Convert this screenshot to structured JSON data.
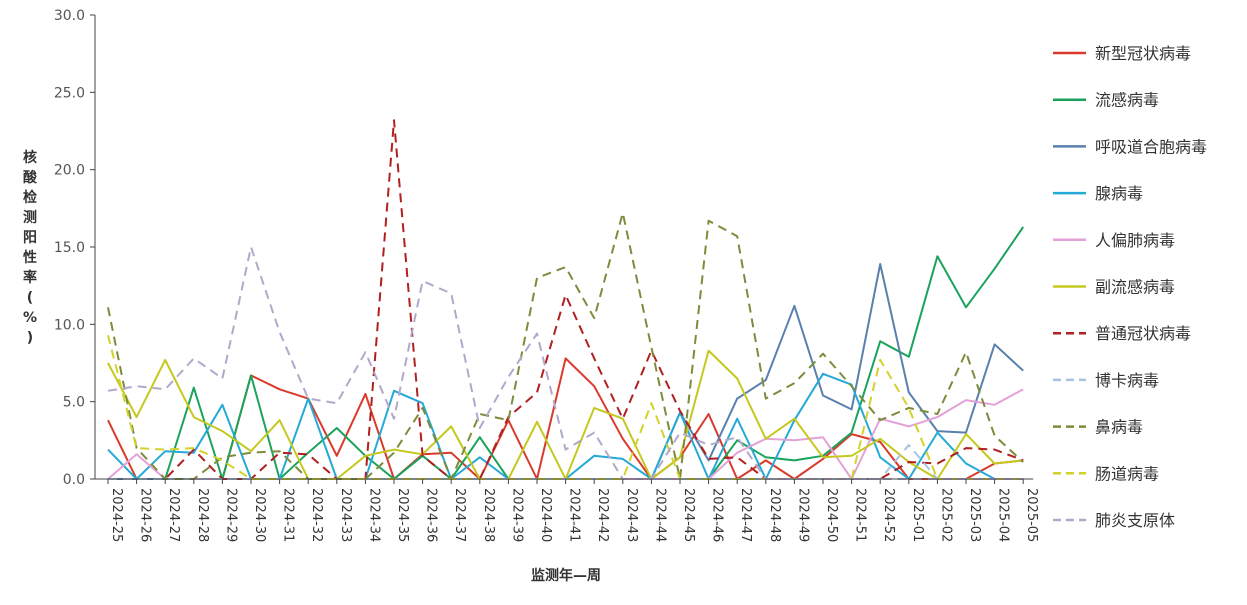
{
  "chart_data": {
    "type": "line",
    "title": "",
    "xlabel": "监测年—周",
    "ylabel": "核酸检测阳性率(%)",
    "ylim": [
      0,
      30
    ],
    "yticks": [
      "0.0",
      "5.0",
      "10.0",
      "15.0",
      "20.0",
      "25.0",
      "30.0"
    ],
    "grid": false,
    "legend_position": "right",
    "categories": [
      "2024-25",
      "2024-26",
      "2024-27",
      "2024-28",
      "2024-29",
      "2024-30",
      "2024-31",
      "2024-32",
      "2024-33",
      "2024-34",
      "2024-35",
      "2024-36",
      "2024-37",
      "2024-38",
      "2024-39",
      "2024-40",
      "2024-41",
      "2024-42",
      "2024-43",
      "2024-44",
      "2024-45",
      "2024-46",
      "2024-47",
      "2024-48",
      "2024-49",
      "2024-50",
      "2024-51",
      "2024-52",
      "2025-01",
      "2025-02",
      "2025-03",
      "2025-04",
      "2025-05"
    ],
    "series": [
      {
        "name": "新型冠状病毒",
        "color": "#d93a2b",
        "dash": "solid",
        "values": [
          3.8,
          0,
          0,
          0,
          0,
          6.7,
          5.8,
          5.2,
          1.5,
          5.5,
          0,
          1.6,
          1.7,
          0,
          3.8,
          0,
          7.8,
          6.0,
          2.6,
          0,
          1.4,
          4.2,
          0,
          1.2,
          0,
          1.3,
          2.9,
          2.4,
          0,
          0,
          0,
          1.0,
          1.2
        ]
      },
      {
        "name": "流感病毒",
        "color": "#1aa35a",
        "dash": "solid",
        "values": [
          0,
          0,
          0,
          5.9,
          0,
          6.7,
          0,
          1.7,
          3.3,
          1.5,
          0,
          1.5,
          0,
          2.7,
          0,
          0,
          0,
          0,
          0,
          0,
          0,
          0,
          2.5,
          1.4,
          1.2,
          1.5,
          3.0,
          8.9,
          7.9,
          14.4,
          11.1,
          13.6,
          16.3
        ]
      },
      {
        "name": "呼吸道合胞病毒",
        "color": "#5a80ad",
        "dash": "solid",
        "values": [
          0,
          0,
          0,
          0,
          0,
          0,
          0,
          0,
          0,
          0,
          0,
          0,
          0,
          0,
          0,
          0,
          0,
          0,
          0,
          0,
          4.3,
          1.2,
          5.2,
          6.4,
          11.2,
          5.4,
          4.5,
          13.9,
          5.6,
          3.1,
          3.0,
          8.7,
          7.0
        ]
      },
      {
        "name": "腺病毒",
        "color": "#25a9d6",
        "dash": "solid",
        "values": [
          1.9,
          0,
          1.8,
          1.7,
          4.8,
          0,
          0,
          5.2,
          0,
          0,
          5.7,
          4.9,
          0,
          1.4,
          0,
          0,
          0,
          1.5,
          1.3,
          0,
          4.3,
          0,
          3.9,
          0,
          3.8,
          6.8,
          6.1,
          1.4,
          0,
          3.0,
          1.0,
          0,
          0
        ]
      },
      {
        "name": "人偏肺病毒",
        "color": "#e2a2d8",
        "dash": "solid",
        "values": [
          0,
          1.6,
          0,
          0,
          0,
          0,
          0,
          0,
          0,
          0,
          0,
          0,
          0,
          0,
          0,
          0,
          0,
          0,
          0,
          0,
          0,
          0,
          1.7,
          2.6,
          2.5,
          2.7,
          0,
          3.9,
          3.4,
          4.0,
          5.1,
          4.8,
          5.8
        ]
      },
      {
        "name": "副流感病毒",
        "color": "#c5c81e",
        "dash": "solid",
        "values": [
          7.5,
          4.0,
          7.7,
          4.0,
          3.1,
          1.8,
          3.8,
          0,
          0,
          1.5,
          1.9,
          1.6,
          3.4,
          0,
          0,
          3.7,
          0,
          4.6,
          3.9,
          0,
          1.4,
          8.3,
          6.5,
          2.6,
          3.9,
          1.4,
          1.5,
          2.6,
          1.1,
          0,
          2.9,
          1.0,
          1.2
        ]
      },
      {
        "name": "普通冠状病毒",
        "color": "#b02020",
        "dash": "dash",
        "values": [
          0,
          0,
          0,
          1.9,
          0,
          0,
          1.7,
          1.6,
          0,
          0,
          23.2,
          1.5,
          0,
          0,
          4.0,
          5.6,
          11.9,
          7.8,
          3.9,
          8.3,
          4.4,
          1.3,
          1.4,
          0,
          0,
          0,
          0,
          0,
          1.1,
          1.0,
          2.0,
          1.9,
          1.2
        ]
      },
      {
        "name": "博卡病毒",
        "color": "#a9c4e0",
        "dash": "dash",
        "values": [
          0,
          0,
          0,
          0,
          0,
          0,
          0,
          0,
          0,
          0,
          0,
          0,
          0,
          0,
          0,
          0,
          0,
          0,
          0,
          0,
          0,
          0,
          0,
          0,
          0,
          0,
          0,
          0,
          2.2,
          0,
          0,
          0,
          0
        ]
      },
      {
        "name": "鼻病毒",
        "color": "#7d8c3a",
        "dash": "dash",
        "values": [
          11.1,
          2.0,
          0,
          0,
          1.4,
          1.7,
          1.8,
          0,
          0,
          0,
          1.7,
          4.6,
          0,
          4.2,
          3.8,
          13.0,
          13.7,
          10.4,
          17.2,
          8.5,
          0,
          16.7,
          15.7,
          5.2,
          6.2,
          8.1,
          6.0,
          3.8,
          4.6,
          4.2,
          8.2,
          2.8,
          1.1
        ]
      },
      {
        "name": "肠道病毒",
        "color": "#d2d22a",
        "dash": "dash",
        "values": [
          9.3,
          2.0,
          1.9,
          2.0,
          1.2,
          0,
          0,
          0,
          0,
          0,
          0,
          0,
          0,
          0,
          0,
          0,
          0,
          0,
          0,
          4.9,
          0,
          0,
          0,
          0,
          0,
          0,
          0,
          7.7,
          4.6,
          0,
          0,
          0,
          0
        ]
      },
      {
        "name": "肺炎支原体",
        "color": "#b3a7cb",
        "dash": "dash",
        "values": [
          5.7,
          6.0,
          5.8,
          7.8,
          6.5,
          15.0,
          9.5,
          5.2,
          4.9,
          8.2,
          3.9,
          12.8,
          12.0,
          3.3,
          6.6,
          9.4,
          1.9,
          3.0,
          0,
          0,
          3.0,
          2.2,
          2.7,
          0,
          0,
          0,
          0,
          0,
          0,
          0,
          0,
          0,
          0
        ]
      }
    ]
  }
}
